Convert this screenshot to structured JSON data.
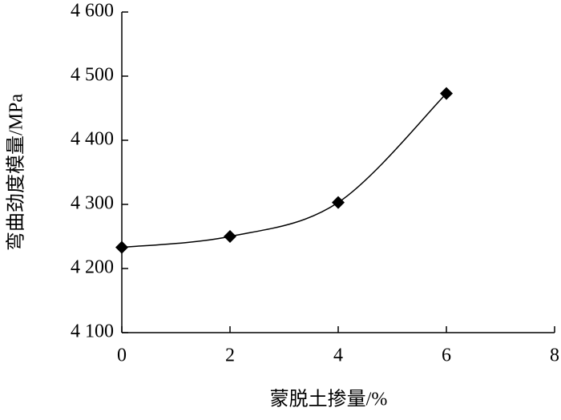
{
  "chart_data": {
    "type": "line",
    "x_label": "蒙脱土掺量/%",
    "y_label": "弯曲劲度模量/MPa",
    "x": [
      0,
      2,
      4,
      6
    ],
    "values": [
      4233,
      4250,
      4303,
      4473
    ],
    "color": "#000000",
    "marker": "diamond",
    "smooth": true,
    "xlim": [
      0,
      8
    ],
    "xticks": [
      0,
      2,
      4,
      6,
      8
    ],
    "ylim": [
      4100,
      4600
    ],
    "yticks": [
      {
        "value": 4100,
        "label": "4 100"
      },
      {
        "value": 4200,
        "label": "4 200"
      },
      {
        "value": 4300,
        "label": "4 300"
      },
      {
        "value": 4400,
        "label": "4 400"
      },
      {
        "value": 4500,
        "label": "4 500"
      },
      {
        "value": 4600,
        "label": "4 600"
      }
    ]
  }
}
